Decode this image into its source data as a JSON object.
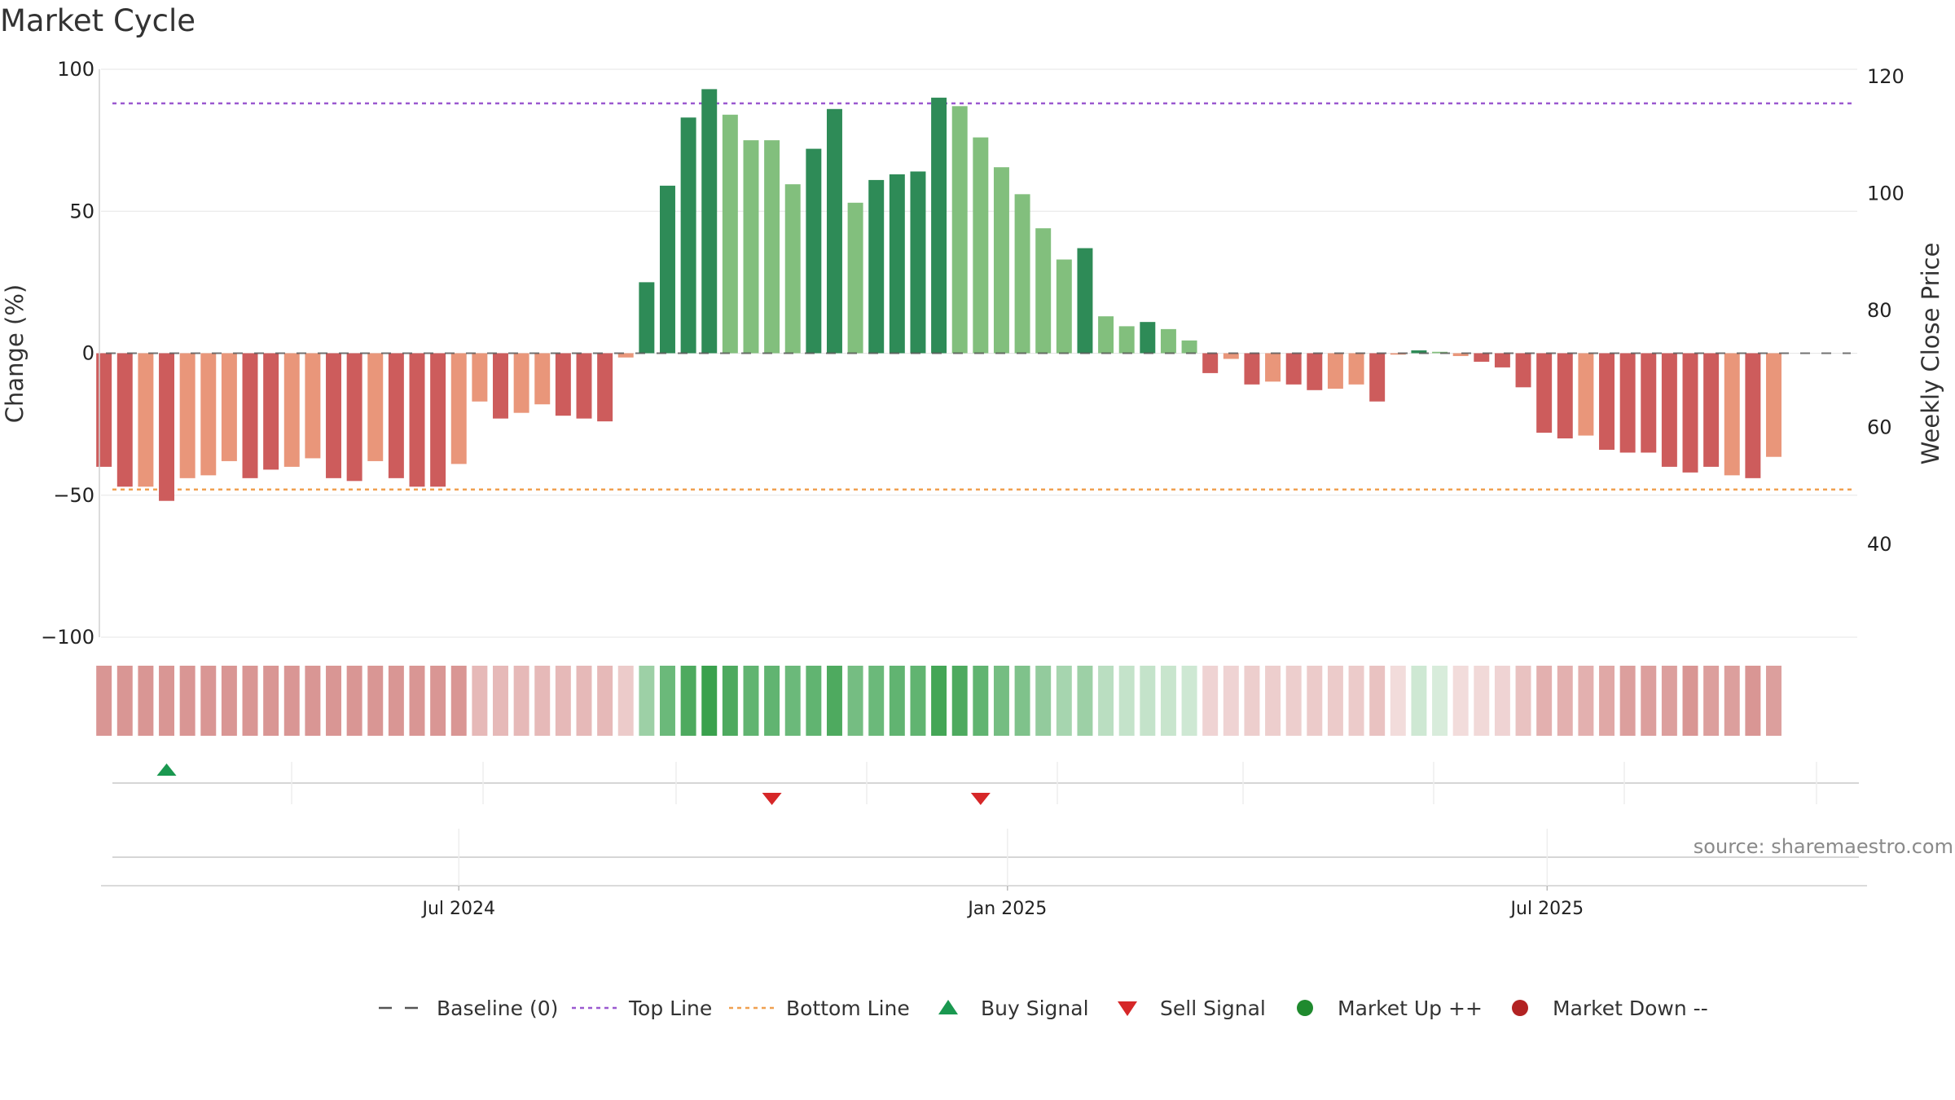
{
  "chart_data": {
    "type": "bar",
    "title": "Market Cycle",
    "ylabel": "Change (%)",
    "y2label": "Weekly Close Price",
    "ylim": [
      -100,
      100
    ],
    "y2lim": [
      20,
      125
    ],
    "yticks": [
      100,
      50,
      0,
      -50,
      -100
    ],
    "y2ticks": [
      120,
      100,
      80,
      60,
      40
    ],
    "x_start": "2024-03-03",
    "x_end": "2025-10-13",
    "xticks": [
      {
        "date": "2024-07-01",
        "label": "Jul 2024"
      },
      {
        "date": "2025-01-01",
        "label": "Jan 2025"
      },
      {
        "date": "2025-07-01",
        "label": "Jul 2025"
      }
    ],
    "top_line": 88,
    "bottom_line": -48,
    "grid": true,
    "legend_position": "bottom",
    "source": "source: sharemaestro.com",
    "colors": {
      "up_dark": "#2e8b57",
      "up_light": "#82bf7d",
      "down_dark": "#cd5c5c",
      "down_light": "#e9967a",
      "top_line": "#9b59d0",
      "bottom_line": "#f0a050",
      "baseline": "#555555",
      "buy": "#1a9850",
      "sell": "#d62728",
      "market_up": "#1f8a2e",
      "market_down": "#b22222"
    },
    "first_week": "2024-03-04",
    "values": [
      -40,
      -47,
      -47,
      -52,
      -44,
      -43,
      -38,
      -44,
      -41,
      -40,
      -37,
      -44,
      -45,
      -38,
      -44,
      -47,
      -47,
      -39,
      -17,
      -23,
      -21,
      -18,
      -22,
      -23,
      -24,
      -1.5,
      25,
      59,
      83,
      93,
      84,
      75,
      75,
      59.5,
      72,
      86,
      53,
      61,
      63,
      64,
      90,
      87,
      76,
      65.5,
      56,
      44,
      33,
      37,
      13,
      9.5,
      11,
      8.5,
      4.5,
      -7,
      -2,
      -11,
      -10,
      -11,
      -13,
      -12.5,
      -11,
      -17,
      -0.5,
      1,
      0.5,
      -1,
      -3,
      -5,
      -12,
      -28,
      -30,
      -29,
      -34,
      -35,
      -35,
      -40,
      -42,
      -40,
      -43,
      -44,
      -36.5
    ],
    "strength": [
      "d",
      "d",
      "l",
      "d",
      "l",
      "l",
      "l",
      "d",
      "d",
      "l",
      "l",
      "d",
      "d",
      "l",
      "d",
      "d",
      "d",
      "l",
      "l",
      "d",
      "l",
      "l",
      "d",
      "d",
      "d",
      "l",
      "d",
      "d",
      "d",
      "d",
      "l",
      "l",
      "l",
      "l",
      "d",
      "d",
      "l",
      "d",
      "d",
      "d",
      "d",
      "l",
      "l",
      "l",
      "l",
      "l",
      "l",
      "d",
      "l",
      "l",
      "d",
      "l",
      "l",
      "d",
      "l",
      "d",
      "l",
      "d",
      "d",
      "l",
      "l",
      "d",
      "l",
      "d",
      "l",
      "l",
      "d",
      "d",
      "d",
      "d",
      "d",
      "l",
      "d",
      "d",
      "d",
      "d",
      "d",
      "d",
      "l",
      "d",
      "l"
    ],
    "heat_intensity": [
      0.6,
      0.6,
      0.6,
      0.6,
      0.6,
      0.6,
      0.6,
      0.6,
      0.6,
      0.6,
      0.6,
      0.6,
      0.6,
      0.6,
      0.6,
      0.6,
      0.6,
      0.6,
      0.4,
      0.4,
      0.4,
      0.4,
      0.4,
      0.4,
      0.4,
      0.3,
      0.5,
      0.75,
      0.9,
      1.0,
      0.9,
      0.8,
      0.8,
      0.75,
      0.8,
      0.9,
      0.7,
      0.75,
      0.8,
      0.8,
      0.95,
      0.9,
      0.8,
      0.7,
      0.65,
      0.55,
      0.45,
      0.5,
      0.35,
      0.3,
      0.3,
      0.28,
      0.25,
      0.25,
      0.25,
      0.28,
      0.28,
      0.28,
      0.3,
      0.3,
      0.3,
      0.35,
      0.2,
      0.25,
      0.2,
      0.2,
      0.22,
      0.25,
      0.35,
      0.45,
      0.45,
      0.45,
      0.5,
      0.55,
      0.55,
      0.55,
      0.6,
      0.55,
      0.55,
      0.6,
      0.55
    ],
    "buy_signals": [
      "2024-03-25"
    ],
    "sell_signals": [
      "2024-10-14",
      "2024-12-23"
    ],
    "legend": [
      {
        "key": "baseline",
        "label": "Baseline (0)"
      },
      {
        "key": "top",
        "label": "Top Line"
      },
      {
        "key": "bottom",
        "label": "Bottom Line"
      },
      {
        "key": "buy",
        "label": "Buy Signal"
      },
      {
        "key": "sell",
        "label": "Sell Signal"
      },
      {
        "key": "up",
        "label": "Market Up ++"
      },
      {
        "key": "down",
        "label": "Market Down --"
      }
    ]
  }
}
